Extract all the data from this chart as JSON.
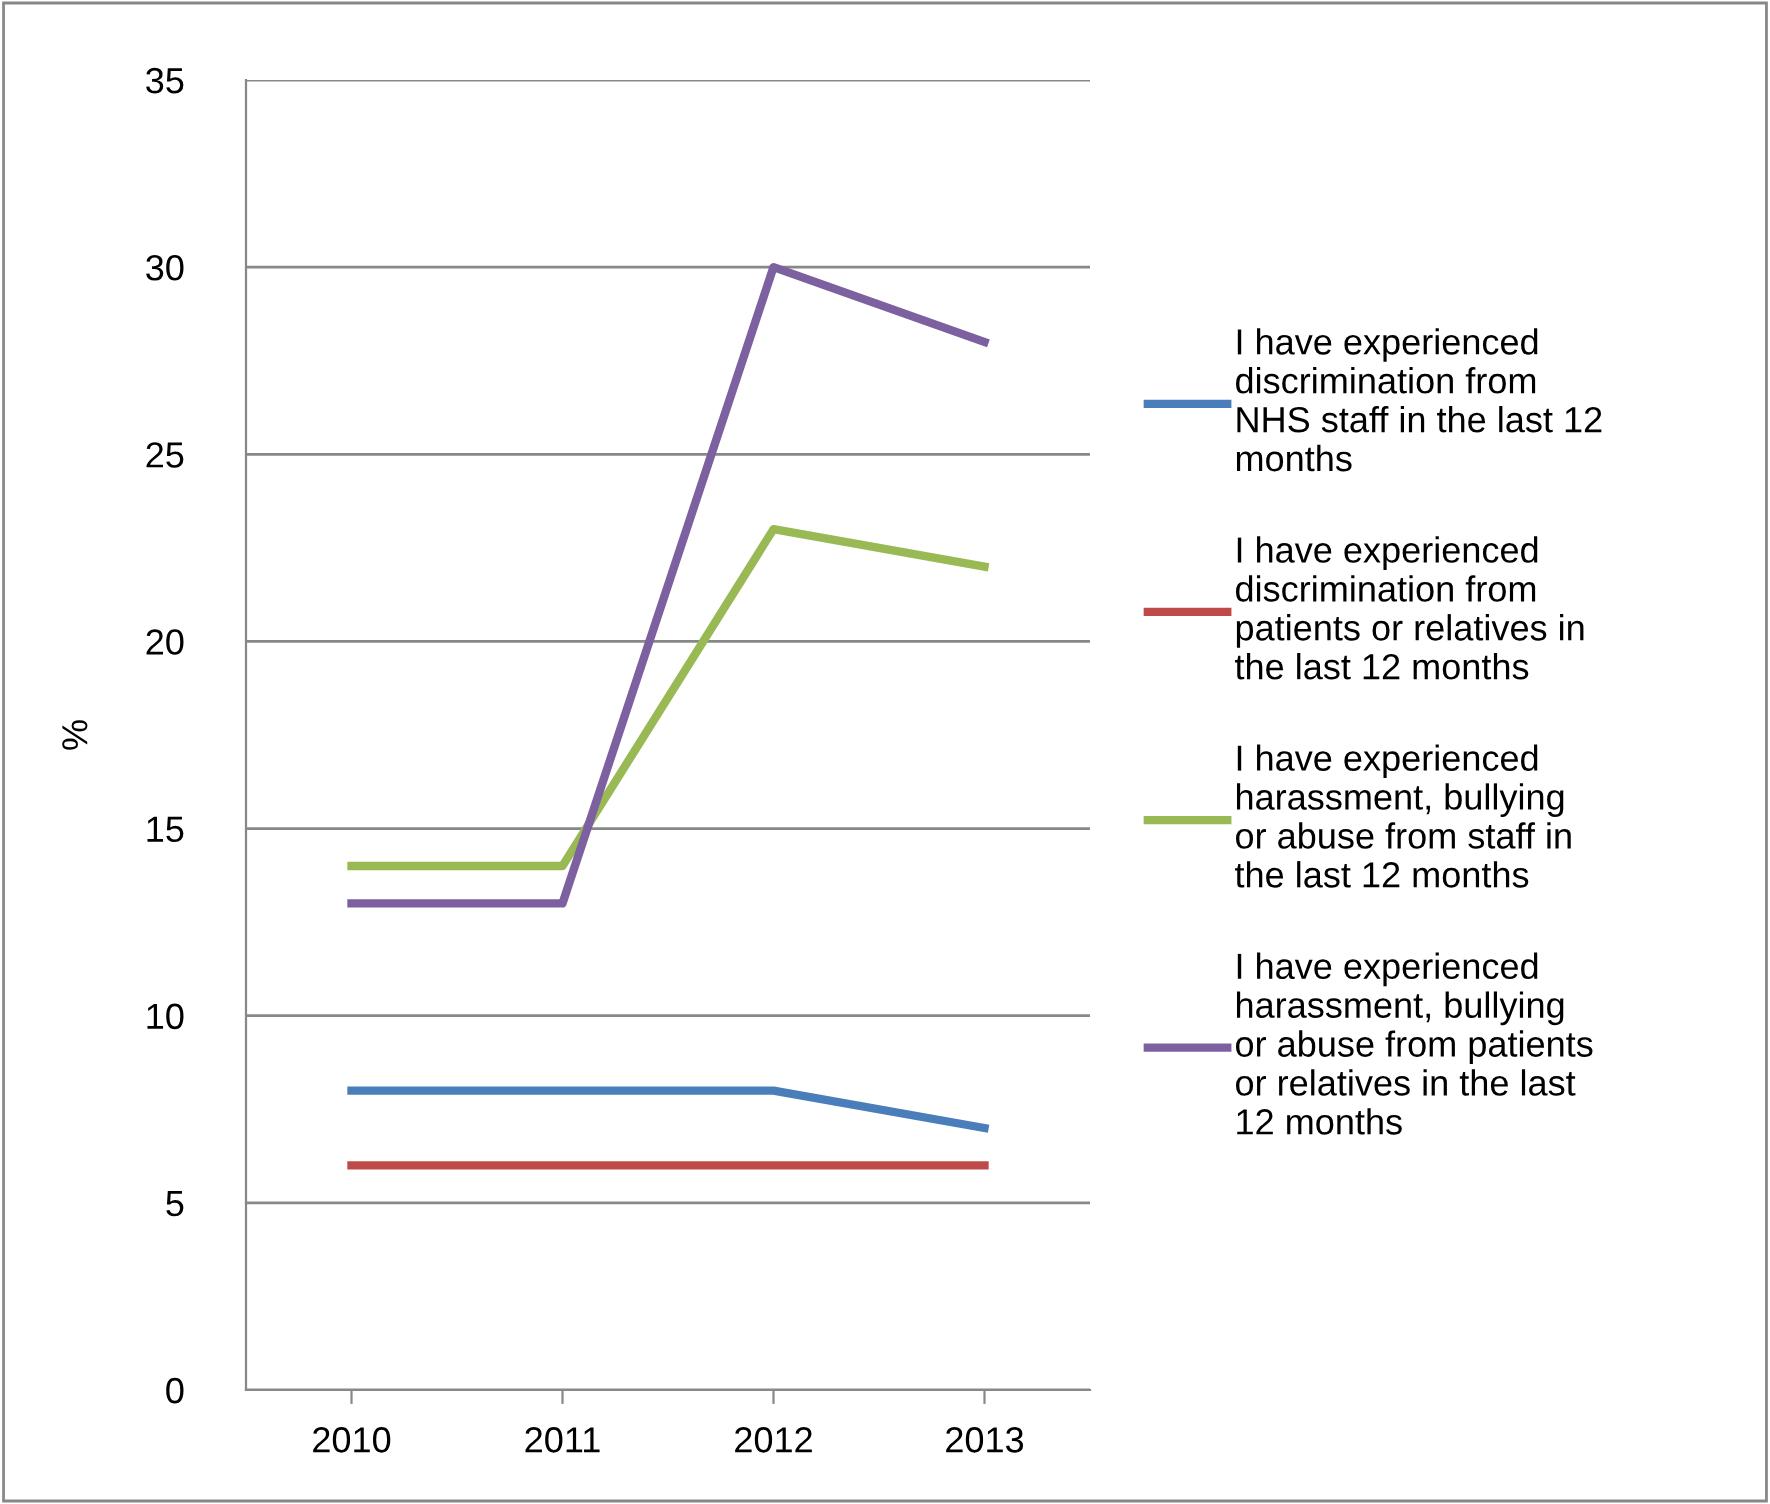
{
  "chart_data": {
    "type": "line",
    "ylabel": "%",
    "categories": [
      "2010",
      "2011",
      "2012",
      "2013"
    ],
    "series": [
      {
        "name": "I have experienced\ndiscrimination from\nNHS staff in the last 12\nmonths",
        "color": "#4a7ebb",
        "values": [
          8,
          8,
          8,
          7
        ]
      },
      {
        "name": "I have experienced\ndiscrimination from\npatients or relatives in\nthe last 12 months",
        "color": "#be4b48",
        "values": [
          6,
          6,
          6,
          6
        ]
      },
      {
        "name": "I have experienced\nharassment, bullying\nor abuse from staff in\nthe last 12 months",
        "color": "#98b954",
        "values": [
          14,
          14,
          23,
          22
        ]
      },
      {
        "name": "I have experienced\nharassment, bullying\nor abuse from patients\nor relatives in the last\n12 months",
        "color": "#7d60a0",
        "values": [
          13,
          13,
          30,
          28
        ]
      }
    ],
    "ylim": [
      0,
      35
    ],
    "yticks": [
      0,
      5,
      10,
      15,
      20,
      25,
      30,
      35
    ],
    "grid": "y",
    "legend": "right",
    "marker": "none",
    "line_style": "solid"
  }
}
